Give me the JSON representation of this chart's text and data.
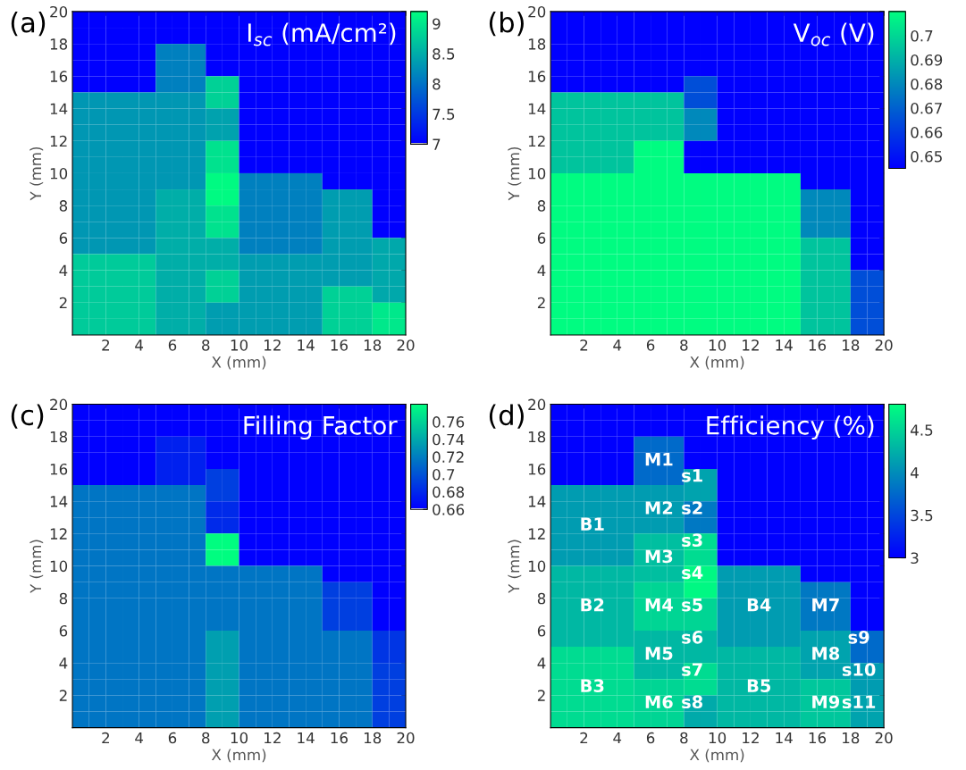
{
  "chart_data": [
    {
      "type": "heatmap",
      "title": "I$_{sc}$ (mA/cm²)",
      "xlabel": "X (mm)",
      "ylabel": "Y (mm)",
      "annotations": [
        "(a)"
      ],
      "xlim": [
        0,
        20
      ],
      "ylim": [
        0,
        20
      ],
      "xticks": [
        2,
        4,
        6,
        8,
        10,
        12,
        14,
        16,
        18,
        20
      ],
      "yticks": [
        2,
        4,
        6,
        8,
        10,
        12,
        14,
        16,
        18,
        20
      ],
      "clim": [
        7,
        9.2
      ],
      "cticks": [
        7,
        7.5,
        8,
        8.5,
        9
      ],
      "grid": false,
      "cells": [
        [
          7,
          7,
          7,
          7,
          7,
          7,
          7,
          7,
          7,
          7,
          7,
          7,
          7,
          7,
          7,
          7,
          7,
          7,
          7,
          7
        ],
        [
          7,
          7,
          7,
          7,
          7,
          7,
          7,
          7,
          7,
          7,
          7,
          7,
          7,
          7,
          7,
          7,
          7,
          7,
          7,
          7
        ],
        [
          7,
          7,
          7,
          7,
          7,
          8.1,
          8.1,
          8.1,
          7,
          7,
          7,
          7,
          7,
          7,
          7,
          7,
          7,
          7,
          7,
          7
        ],
        [
          7,
          7,
          7,
          7,
          7,
          8.1,
          8.1,
          8.1,
          7,
          7,
          7,
          7,
          7,
          7,
          7,
          7,
          7,
          7,
          7,
          7
        ],
        [
          7,
          7,
          7,
          7,
          7,
          8.1,
          8.1,
          8.1,
          8.8,
          8.8,
          7,
          7,
          7,
          7,
          7,
          7,
          7,
          7,
          7,
          7
        ],
        [
          8.3,
          8.3,
          8.3,
          8.3,
          8.3,
          8.3,
          8.3,
          8.3,
          8.8,
          8.8,
          7,
          7,
          7,
          7,
          7,
          7,
          7,
          7,
          7,
          7
        ],
        [
          8.3,
          8.3,
          8.3,
          8.3,
          8.3,
          8.3,
          8.3,
          8.3,
          8.4,
          8.4,
          7,
          7,
          7,
          7,
          7,
          7,
          7,
          7,
          7,
          7
        ],
        [
          8.3,
          8.3,
          8.3,
          8.3,
          8.3,
          8.3,
          8.3,
          8.3,
          8.4,
          8.4,
          7,
          7,
          7,
          7,
          7,
          7,
          7,
          7,
          7,
          7
        ],
        [
          8.3,
          8.3,
          8.3,
          8.3,
          8.3,
          8.3,
          8.3,
          8.3,
          8.95,
          8.95,
          7,
          7,
          7,
          7,
          7,
          7,
          7,
          7,
          7,
          7
        ],
        [
          8.3,
          8.3,
          8.3,
          8.3,
          8.3,
          8.3,
          8.3,
          8.3,
          8.95,
          8.95,
          7,
          7,
          7,
          7,
          7,
          7,
          7,
          7,
          7,
          7
        ],
        [
          8.3,
          8.3,
          8.3,
          8.3,
          8.3,
          8.3,
          8.3,
          8.3,
          9.15,
          9.15,
          8.1,
          8.1,
          8.1,
          8.1,
          8.1,
          7,
          7,
          7,
          7,
          7
        ],
        [
          8.3,
          8.3,
          8.3,
          8.3,
          8.3,
          8.5,
          8.5,
          8.5,
          9.15,
          9.15,
          8.1,
          8.1,
          8.1,
          8.1,
          8.1,
          8.35,
          8.35,
          8.35,
          7,
          7
        ],
        [
          8.3,
          8.3,
          8.3,
          8.3,
          8.3,
          8.5,
          8.5,
          8.5,
          8.95,
          8.95,
          8.1,
          8.1,
          8.1,
          8.1,
          8.1,
          8.35,
          8.35,
          8.35,
          7,
          7
        ],
        [
          8.3,
          8.3,
          8.3,
          8.3,
          8.3,
          8.5,
          8.5,
          8.5,
          8.95,
          8.95,
          8.1,
          8.1,
          8.1,
          8.1,
          8.1,
          8.35,
          8.35,
          8.35,
          7,
          7
        ],
        [
          8.3,
          8.3,
          8.3,
          8.3,
          8.3,
          8.5,
          8.5,
          8.5,
          8.5,
          8.5,
          8.1,
          8.1,
          8.1,
          8.1,
          8.1,
          8.35,
          8.35,
          8.35,
          8.45,
          8.45
        ],
        [
          8.75,
          8.75,
          8.75,
          8.75,
          8.75,
          8.5,
          8.5,
          8.5,
          8.5,
          8.5,
          8.35,
          8.35,
          8.35,
          8.35,
          8.35,
          8.35,
          8.35,
          8.35,
          8.45,
          8.45
        ],
        [
          8.75,
          8.75,
          8.75,
          8.75,
          8.75,
          8.5,
          8.5,
          8.5,
          8.8,
          8.8,
          8.35,
          8.35,
          8.35,
          8.35,
          8.35,
          8.35,
          8.35,
          8.35,
          8.45,
          8.45
        ],
        [
          8.75,
          8.75,
          8.75,
          8.75,
          8.75,
          8.5,
          8.5,
          8.5,
          8.8,
          8.8,
          8.35,
          8.35,
          8.35,
          8.35,
          8.35,
          8.8,
          8.8,
          8.8,
          8.45,
          8.45
        ],
        [
          8.75,
          8.75,
          8.75,
          8.75,
          8.75,
          8.5,
          8.5,
          8.5,
          8.35,
          8.35,
          8.35,
          8.35,
          8.35,
          8.35,
          8.35,
          8.8,
          8.8,
          8.8,
          9,
          9
        ],
        [
          8.75,
          8.75,
          8.75,
          8.75,
          8.75,
          8.5,
          8.5,
          8.5,
          8.35,
          8.35,
          8.35,
          8.35,
          8.35,
          8.35,
          8.35,
          8.8,
          8.8,
          8.8,
          9,
          9
        ]
      ]
    },
    {
      "type": "heatmap",
      "title": "V$_{oc}$ (V)",
      "xlabel": "X (mm)",
      "ylabel": "Y (mm)",
      "annotations": [
        "(b)"
      ],
      "xlim": [
        0,
        20
      ],
      "ylim": [
        0,
        20
      ],
      "xticks": [
        2,
        4,
        6,
        8,
        10,
        12,
        14,
        16,
        18,
        20
      ],
      "yticks": [
        2,
        4,
        6,
        8,
        10,
        12,
        14,
        16,
        18,
        20
      ],
      "clim": [
        0.645,
        0.71
      ],
      "cticks": [
        0.65,
        0.66,
        0.67,
        0.68,
        0.69,
        0.7
      ],
      "grid": false,
      "cells": [
        [
          0.645,
          0.645,
          0.645,
          0.645,
          0.645,
          0.645,
          0.645,
          0.645,
          0.645,
          0.645,
          0.645,
          0.645,
          0.645,
          0.645,
          0.645,
          0.645,
          0.645,
          0.645,
          0.645,
          0.645
        ],
        [
          0.645,
          0.645,
          0.645,
          0.645,
          0.645,
          0.645,
          0.645,
          0.645,
          0.645,
          0.645,
          0.645,
          0.645,
          0.645,
          0.645,
          0.645,
          0.645,
          0.645,
          0.645,
          0.645,
          0.645
        ],
        [
          0.645,
          0.645,
          0.645,
          0.645,
          0.645,
          0.645,
          0.645,
          0.645,
          0.645,
          0.645,
          0.645,
          0.645,
          0.645,
          0.645,
          0.645,
          0.645,
          0.645,
          0.645,
          0.645,
          0.645
        ],
        [
          0.645,
          0.645,
          0.645,
          0.645,
          0.645,
          0.645,
          0.645,
          0.645,
          0.645,
          0.645,
          0.645,
          0.645,
          0.645,
          0.645,
          0.645,
          0.645,
          0.645,
          0.645,
          0.645,
          0.645
        ],
        [
          0.645,
          0.645,
          0.645,
          0.645,
          0.645,
          0.645,
          0.645,
          0.645,
          0.665,
          0.665,
          0.645,
          0.645,
          0.645,
          0.645,
          0.645,
          0.645,
          0.645,
          0.645,
          0.645,
          0.645
        ],
        [
          0.695,
          0.695,
          0.695,
          0.695,
          0.695,
          0.695,
          0.695,
          0.695,
          0.665,
          0.665,
          0.645,
          0.645,
          0.645,
          0.645,
          0.645,
          0.645,
          0.645,
          0.645,
          0.645,
          0.645
        ],
        [
          0.695,
          0.695,
          0.695,
          0.695,
          0.695,
          0.695,
          0.695,
          0.695,
          0.68,
          0.68,
          0.645,
          0.645,
          0.645,
          0.645,
          0.645,
          0.645,
          0.645,
          0.645,
          0.645,
          0.645
        ],
        [
          0.695,
          0.695,
          0.695,
          0.695,
          0.695,
          0.695,
          0.695,
          0.695,
          0.68,
          0.68,
          0.645,
          0.645,
          0.645,
          0.645,
          0.645,
          0.645,
          0.645,
          0.645,
          0.645,
          0.645
        ],
        [
          0.695,
          0.695,
          0.695,
          0.695,
          0.695,
          0.709,
          0.709,
          0.709,
          0.645,
          0.645,
          0.645,
          0.645,
          0.645,
          0.645,
          0.645,
          0.645,
          0.645,
          0.645,
          0.645,
          0.645
        ],
        [
          0.695,
          0.695,
          0.695,
          0.695,
          0.695,
          0.709,
          0.709,
          0.709,
          0.645,
          0.645,
          0.645,
          0.645,
          0.645,
          0.645,
          0.645,
          0.645,
          0.645,
          0.645,
          0.645,
          0.645
        ],
        [
          0.709,
          0.709,
          0.709,
          0.709,
          0.709,
          0.709,
          0.709,
          0.709,
          0.709,
          0.709,
          0.709,
          0.709,
          0.709,
          0.709,
          0.709,
          0.645,
          0.645,
          0.645,
          0.645,
          0.645
        ],
        [
          0.709,
          0.709,
          0.709,
          0.709,
          0.709,
          0.709,
          0.709,
          0.709,
          0.709,
          0.709,
          0.709,
          0.709,
          0.709,
          0.709,
          0.709,
          0.68,
          0.68,
          0.68,
          0.645,
          0.645
        ],
        [
          0.709,
          0.709,
          0.709,
          0.709,
          0.709,
          0.709,
          0.709,
          0.709,
          0.709,
          0.709,
          0.709,
          0.709,
          0.709,
          0.709,
          0.709,
          0.68,
          0.68,
          0.68,
          0.645,
          0.645
        ],
        [
          0.709,
          0.709,
          0.709,
          0.709,
          0.709,
          0.709,
          0.709,
          0.709,
          0.709,
          0.709,
          0.709,
          0.709,
          0.709,
          0.709,
          0.709,
          0.68,
          0.68,
          0.68,
          0.645,
          0.645
        ],
        [
          0.709,
          0.709,
          0.709,
          0.709,
          0.709,
          0.709,
          0.709,
          0.709,
          0.709,
          0.709,
          0.709,
          0.709,
          0.709,
          0.709,
          0.709,
          0.695,
          0.695,
          0.695,
          0.645,
          0.645
        ],
        [
          0.709,
          0.709,
          0.709,
          0.709,
          0.709,
          0.709,
          0.709,
          0.709,
          0.709,
          0.709,
          0.709,
          0.709,
          0.709,
          0.709,
          0.709,
          0.695,
          0.695,
          0.695,
          0.645,
          0.645
        ],
        [
          0.709,
          0.709,
          0.709,
          0.709,
          0.709,
          0.709,
          0.709,
          0.709,
          0.709,
          0.709,
          0.709,
          0.709,
          0.709,
          0.709,
          0.709,
          0.695,
          0.695,
          0.695,
          0.665,
          0.665
        ],
        [
          0.709,
          0.709,
          0.709,
          0.709,
          0.709,
          0.709,
          0.709,
          0.709,
          0.709,
          0.709,
          0.709,
          0.709,
          0.709,
          0.709,
          0.709,
          0.695,
          0.695,
          0.695,
          0.665,
          0.665
        ],
        [
          0.709,
          0.709,
          0.709,
          0.709,
          0.709,
          0.709,
          0.709,
          0.709,
          0.709,
          0.709,
          0.709,
          0.709,
          0.709,
          0.709,
          0.709,
          0.695,
          0.695,
          0.695,
          0.665,
          0.665
        ],
        [
          0.709,
          0.709,
          0.709,
          0.709,
          0.709,
          0.709,
          0.709,
          0.709,
          0.709,
          0.709,
          0.709,
          0.709,
          0.709,
          0.709,
          0.709,
          0.695,
          0.695,
          0.695,
          0.665,
          0.665
        ]
      ]
    },
    {
      "type": "heatmap",
      "title": "Filling Factor",
      "xlabel": "X (mm)",
      "ylabel": "Y (mm)",
      "annotations": [
        "(c)"
      ],
      "xlim": [
        0,
        20
      ],
      "ylim": [
        0,
        20
      ],
      "xticks": [
        2,
        4,
        6,
        8,
        10,
        12,
        14,
        16,
        18,
        20
      ],
      "yticks": [
        2,
        4,
        6,
        8,
        10,
        12,
        14,
        16,
        18,
        20
      ],
      "clim": [
        0.66,
        0.78
      ],
      "cticks": [
        0.66,
        0.68,
        0.7,
        0.72,
        0.74,
        0.76
      ],
      "grid": false,
      "cells": [
        [
          0.66,
          0.66,
          0.66,
          0.66,
          0.66,
          0.66,
          0.66,
          0.66,
          0.66,
          0.66,
          0.66,
          0.66,
          0.66,
          0.66,
          0.66,
          0.66,
          0.66,
          0.66,
          0.66,
          0.66
        ],
        [
          0.66,
          0.66,
          0.66,
          0.66,
          0.66,
          0.66,
          0.66,
          0.66,
          0.66,
          0.66,
          0.66,
          0.66,
          0.66,
          0.66,
          0.66,
          0.66,
          0.66,
          0.66,
          0.66,
          0.66
        ],
        [
          0.66,
          0.66,
          0.66,
          0.66,
          0.66,
          0.675,
          0.675,
          0.675,
          0.66,
          0.66,
          0.66,
          0.66,
          0.66,
          0.66,
          0.66,
          0.66,
          0.66,
          0.66,
          0.66,
          0.66
        ],
        [
          0.66,
          0.66,
          0.66,
          0.66,
          0.66,
          0.675,
          0.675,
          0.675,
          0.66,
          0.66,
          0.66,
          0.66,
          0.66,
          0.66,
          0.66,
          0.66,
          0.66,
          0.66,
          0.66,
          0.66
        ],
        [
          0.66,
          0.66,
          0.66,
          0.66,
          0.66,
          0.675,
          0.675,
          0.675,
          0.69,
          0.69,
          0.66,
          0.66,
          0.66,
          0.66,
          0.66,
          0.66,
          0.66,
          0.66,
          0.66,
          0.66
        ],
        [
          0.715,
          0.715,
          0.715,
          0.715,
          0.715,
          0.715,
          0.715,
          0.715,
          0.69,
          0.69,
          0.66,
          0.66,
          0.66,
          0.66,
          0.66,
          0.66,
          0.66,
          0.66,
          0.66,
          0.66
        ],
        [
          0.715,
          0.715,
          0.715,
          0.715,
          0.715,
          0.715,
          0.715,
          0.715,
          0.68,
          0.68,
          0.66,
          0.66,
          0.66,
          0.66,
          0.66,
          0.66,
          0.66,
          0.66,
          0.66,
          0.66
        ],
        [
          0.715,
          0.715,
          0.715,
          0.715,
          0.715,
          0.715,
          0.715,
          0.715,
          0.68,
          0.68,
          0.66,
          0.66,
          0.66,
          0.66,
          0.66,
          0.66,
          0.66,
          0.66,
          0.66,
          0.66
        ],
        [
          0.715,
          0.715,
          0.715,
          0.715,
          0.715,
          0.715,
          0.715,
          0.715,
          0.779,
          0.779,
          0.66,
          0.66,
          0.66,
          0.66,
          0.66,
          0.66,
          0.66,
          0.66,
          0.66,
          0.66
        ],
        [
          0.715,
          0.715,
          0.715,
          0.715,
          0.715,
          0.715,
          0.715,
          0.715,
          0.779,
          0.779,
          0.66,
          0.66,
          0.66,
          0.66,
          0.66,
          0.66,
          0.66,
          0.66,
          0.66,
          0.66
        ],
        [
          0.715,
          0.715,
          0.715,
          0.715,
          0.715,
          0.715,
          0.715,
          0.715,
          0.715,
          0.715,
          0.715,
          0.715,
          0.715,
          0.715,
          0.715,
          0.66,
          0.66,
          0.66,
          0.66,
          0.66
        ],
        [
          0.715,
          0.715,
          0.715,
          0.715,
          0.715,
          0.715,
          0.715,
          0.715,
          0.715,
          0.715,
          0.715,
          0.715,
          0.715,
          0.715,
          0.715,
          0.69,
          0.69,
          0.69,
          0.66,
          0.66
        ],
        [
          0.715,
          0.715,
          0.715,
          0.715,
          0.715,
          0.715,
          0.715,
          0.715,
          0.715,
          0.715,
          0.715,
          0.715,
          0.715,
          0.715,
          0.715,
          0.69,
          0.69,
          0.69,
          0.66,
          0.66
        ],
        [
          0.715,
          0.715,
          0.715,
          0.715,
          0.715,
          0.715,
          0.715,
          0.715,
          0.715,
          0.715,
          0.715,
          0.715,
          0.715,
          0.715,
          0.715,
          0.69,
          0.69,
          0.69,
          0.66,
          0.66
        ],
        [
          0.715,
          0.715,
          0.715,
          0.715,
          0.715,
          0.715,
          0.715,
          0.715,
          0.735,
          0.735,
          0.715,
          0.715,
          0.715,
          0.715,
          0.715,
          0.715,
          0.715,
          0.715,
          0.685,
          0.685
        ],
        [
          0.715,
          0.715,
          0.715,
          0.715,
          0.715,
          0.715,
          0.715,
          0.715,
          0.735,
          0.735,
          0.715,
          0.715,
          0.715,
          0.715,
          0.715,
          0.715,
          0.715,
          0.715,
          0.685,
          0.685
        ],
        [
          0.715,
          0.715,
          0.715,
          0.715,
          0.715,
          0.715,
          0.715,
          0.715,
          0.735,
          0.735,
          0.715,
          0.715,
          0.715,
          0.715,
          0.715,
          0.715,
          0.715,
          0.715,
          0.69,
          0.69
        ],
        [
          0.715,
          0.715,
          0.715,
          0.715,
          0.715,
          0.715,
          0.715,
          0.715,
          0.735,
          0.735,
          0.715,
          0.715,
          0.715,
          0.715,
          0.715,
          0.715,
          0.715,
          0.715,
          0.69,
          0.69
        ],
        [
          0.715,
          0.715,
          0.715,
          0.715,
          0.715,
          0.715,
          0.715,
          0.715,
          0.735,
          0.735,
          0.715,
          0.715,
          0.715,
          0.715,
          0.715,
          0.715,
          0.715,
          0.715,
          0.69,
          0.69
        ],
        [
          0.715,
          0.715,
          0.715,
          0.715,
          0.715,
          0.715,
          0.715,
          0.715,
          0.735,
          0.735,
          0.715,
          0.715,
          0.715,
          0.715,
          0.715,
          0.715,
          0.715,
          0.715,
          0.69,
          0.69
        ]
      ]
    },
    {
      "type": "heatmap",
      "title": "Efficiency (%)",
      "xlabel": "X (mm)",
      "ylabel": "Y (mm)",
      "annotations": [
        "(d)"
      ],
      "xlim": [
        0,
        20
      ],
      "ylim": [
        0,
        20
      ],
      "xticks": [
        2,
        4,
        6,
        8,
        10,
        12,
        14,
        16,
        18,
        20
      ],
      "yticks": [
        2,
        4,
        6,
        8,
        10,
        12,
        14,
        16,
        18,
        20
      ],
      "clim": [
        3,
        4.8
      ],
      "cticks": [
        3,
        3.5,
        4,
        4.5
      ],
      "grid": false,
      "cells": [
        [
          3,
          3,
          3,
          3,
          3,
          3,
          3,
          3,
          3,
          3,
          3,
          3,
          3,
          3,
          3,
          3,
          3,
          3,
          3,
          3
        ],
        [
          3,
          3,
          3,
          3,
          3,
          3,
          3,
          3,
          3,
          3,
          3,
          3,
          3,
          3,
          3,
          3,
          3,
          3,
          3,
          3
        ],
        [
          3,
          3,
          3,
          3,
          3,
          3.75,
          3.75,
          3.75,
          3,
          3,
          3,
          3,
          3,
          3,
          3,
          3,
          3,
          3,
          3,
          3
        ],
        [
          3,
          3,
          3,
          3,
          3,
          3.75,
          3.75,
          3.75,
          3,
          3,
          3,
          3,
          3,
          3,
          3,
          3,
          3,
          3,
          3,
          3
        ],
        [
          3,
          3,
          3,
          3,
          3,
          3.75,
          3.75,
          3.75,
          4.15,
          4.15,
          3,
          3,
          3,
          3,
          3,
          3,
          3,
          3,
          3,
          3
        ],
        [
          4.1,
          4.1,
          4.1,
          4.1,
          4.1,
          4.1,
          4.1,
          4.1,
          4.15,
          4.15,
          3,
          3,
          3,
          3,
          3,
          3,
          3,
          3,
          3,
          3
        ],
        [
          4.1,
          4.1,
          4.1,
          4.1,
          4.1,
          4.1,
          4.1,
          4.1,
          3.85,
          3.85,
          3,
          3,
          3,
          3,
          3,
          3,
          3,
          3,
          3,
          3
        ],
        [
          4.1,
          4.1,
          4.1,
          4.1,
          4.1,
          4.1,
          4.1,
          4.1,
          3.85,
          3.85,
          3,
          3,
          3,
          3,
          3,
          3,
          3,
          3,
          3,
          3
        ],
        [
          4.1,
          4.1,
          4.1,
          4.1,
          4.1,
          4.35,
          4.35,
          4.35,
          4.55,
          4.55,
          3,
          3,
          3,
          3,
          3,
          3,
          3,
          3,
          3,
          3
        ],
        [
          4.1,
          4.1,
          4.1,
          4.1,
          4.1,
          4.35,
          4.35,
          4.35,
          4.55,
          4.55,
          3,
          3,
          3,
          3,
          3,
          3,
          3,
          3,
          3,
          3
        ],
        [
          4.3,
          4.3,
          4.3,
          4.3,
          4.3,
          4.35,
          4.35,
          4.35,
          4.75,
          4.75,
          4.1,
          4.1,
          4.1,
          4.1,
          4.1,
          3,
          3,
          3,
          3,
          3
        ],
        [
          4.3,
          4.3,
          4.3,
          4.3,
          4.3,
          4.5,
          4.5,
          4.5,
          4.75,
          4.75,
          4.1,
          4.1,
          4.1,
          4.1,
          4.1,
          3.85,
          3.85,
          3.85,
          3,
          3
        ],
        [
          4.3,
          4.3,
          4.3,
          4.3,
          4.3,
          4.5,
          4.5,
          4.5,
          4.5,
          4.5,
          4.1,
          4.1,
          4.1,
          4.1,
          4.1,
          3.85,
          3.85,
          3.85,
          3,
          3
        ],
        [
          4.3,
          4.3,
          4.3,
          4.3,
          4.3,
          4.5,
          4.5,
          4.5,
          4.5,
          4.5,
          4.1,
          4.1,
          4.1,
          4.1,
          4.1,
          3.85,
          3.85,
          3.85,
          3,
          3
        ],
        [
          4.3,
          4.3,
          4.3,
          4.3,
          4.3,
          4.3,
          4.3,
          4.3,
          4.3,
          4.3,
          4.1,
          4.1,
          4.1,
          4.1,
          4.1,
          4.15,
          4.15,
          4.15,
          3.75,
          3.75
        ],
        [
          4.55,
          4.55,
          4.55,
          4.55,
          4.55,
          4.3,
          4.3,
          4.3,
          4.3,
          4.3,
          4.3,
          4.3,
          4.3,
          4.3,
          4.3,
          4.15,
          4.15,
          4.15,
          3.75,
          3.75
        ],
        [
          4.55,
          4.55,
          4.55,
          4.55,
          4.55,
          4.3,
          4.3,
          4.3,
          4.55,
          4.55,
          4.3,
          4.3,
          4.3,
          4.3,
          4.3,
          4.15,
          4.15,
          4.15,
          4.1,
          4.1
        ],
        [
          4.55,
          4.55,
          4.55,
          4.55,
          4.55,
          4.5,
          4.5,
          4.5,
          4.55,
          4.55,
          4.3,
          4.3,
          4.3,
          4.3,
          4.3,
          4.4,
          4.4,
          4.4,
          4.1,
          4.1
        ],
        [
          4.55,
          4.55,
          4.55,
          4.55,
          4.55,
          4.5,
          4.5,
          4.5,
          4.2,
          4.2,
          4.3,
          4.3,
          4.3,
          4.3,
          4.3,
          4.4,
          4.4,
          4.4,
          4.15,
          4.15
        ],
        [
          4.55,
          4.55,
          4.55,
          4.55,
          4.55,
          4.5,
          4.5,
          4.5,
          4.2,
          4.2,
          4.3,
          4.3,
          4.3,
          4.3,
          4.3,
          4.4,
          4.4,
          4.4,
          4.15,
          4.15
        ]
      ],
      "cell_labels": [
        [
          null,
          null,
          null,
          null,
          null,
          null,
          null,
          null,
          null,
          null,
          null,
          null,
          null,
          null,
          null,
          null,
          null,
          null,
          null,
          null
        ],
        [
          null,
          null,
          null,
          null,
          null,
          null,
          null,
          null,
          null,
          null,
          null,
          null,
          null,
          null,
          null,
          null,
          null,
          null,
          null,
          null
        ],
        [
          null,
          null,
          null,
          null,
          null,
          null,
          null,
          null,
          null,
          null,
          null,
          null,
          null,
          null,
          null,
          null,
          null,
          null,
          null,
          null
        ],
        [
          null,
          null,
          null,
          null,
          null,
          null,
          "M1",
          null,
          null,
          null,
          null,
          null,
          null,
          null,
          null,
          null,
          null,
          null,
          null,
          null
        ],
        [
          null,
          null,
          null,
          null,
          null,
          null,
          null,
          null,
          "s1",
          null,
          null,
          null,
          null,
          null,
          null,
          null,
          null,
          null,
          null,
          null
        ],
        [
          null,
          null,
          null,
          null,
          null,
          null,
          null,
          null,
          null,
          null,
          null,
          null,
          null,
          null,
          null,
          null,
          null,
          null,
          null,
          null
        ],
        [
          null,
          null,
          null,
          null,
          null,
          null,
          "M2",
          null,
          "s2",
          null,
          null,
          null,
          null,
          null,
          null,
          null,
          null,
          null,
          null,
          null
        ],
        [
          null,
          null,
          "B1",
          null,
          null,
          null,
          null,
          null,
          null,
          null,
          null,
          null,
          null,
          null,
          null,
          null,
          null,
          null,
          null,
          null
        ],
        [
          null,
          null,
          null,
          null,
          null,
          null,
          null,
          null,
          "s3",
          null,
          null,
          null,
          null,
          null,
          null,
          null,
          null,
          null,
          null,
          null
        ],
        [
          null,
          null,
          null,
          null,
          null,
          null,
          "M3",
          null,
          null,
          null,
          null,
          null,
          null,
          null,
          null,
          null,
          null,
          null,
          null,
          null
        ],
        [
          null,
          null,
          null,
          null,
          null,
          null,
          null,
          null,
          "s4",
          null,
          null,
          null,
          null,
          null,
          null,
          null,
          null,
          null,
          null,
          null
        ],
        [
          null,
          null,
          null,
          null,
          null,
          null,
          null,
          null,
          null,
          null,
          null,
          null,
          null,
          null,
          null,
          null,
          null,
          null,
          null,
          null
        ],
        [
          null,
          null,
          "B2",
          null,
          null,
          null,
          "M4",
          null,
          "s5",
          null,
          null,
          null,
          "B4",
          null,
          null,
          null,
          "M7",
          null,
          null,
          null
        ],
        [
          null,
          null,
          null,
          null,
          null,
          null,
          null,
          null,
          null,
          null,
          null,
          null,
          null,
          null,
          null,
          null,
          null,
          null,
          null,
          null
        ],
        [
          null,
          null,
          null,
          null,
          null,
          null,
          null,
          null,
          "s6",
          null,
          null,
          null,
          null,
          null,
          null,
          null,
          null,
          null,
          "s9",
          null
        ],
        [
          null,
          null,
          null,
          null,
          null,
          null,
          "M5",
          null,
          null,
          null,
          null,
          null,
          null,
          null,
          null,
          null,
          "M8",
          null,
          null,
          null
        ],
        [
          null,
          null,
          null,
          null,
          null,
          null,
          null,
          null,
          "s7",
          null,
          null,
          null,
          null,
          null,
          null,
          null,
          null,
          null,
          "s10",
          null
        ],
        [
          null,
          null,
          "B3",
          null,
          null,
          null,
          null,
          null,
          null,
          null,
          null,
          null,
          "B5",
          null,
          null,
          null,
          null,
          null,
          null,
          null
        ],
        [
          null,
          null,
          null,
          null,
          null,
          null,
          "M6",
          null,
          "s8",
          null,
          null,
          null,
          null,
          null,
          null,
          null,
          "M9",
          null,
          "s11",
          null
        ],
        [
          null,
          null,
          null,
          null,
          null,
          null,
          null,
          null,
          null,
          null,
          null,
          null,
          null,
          null,
          null,
          null,
          null,
          null,
          null,
          null
        ]
      ]
    }
  ]
}
